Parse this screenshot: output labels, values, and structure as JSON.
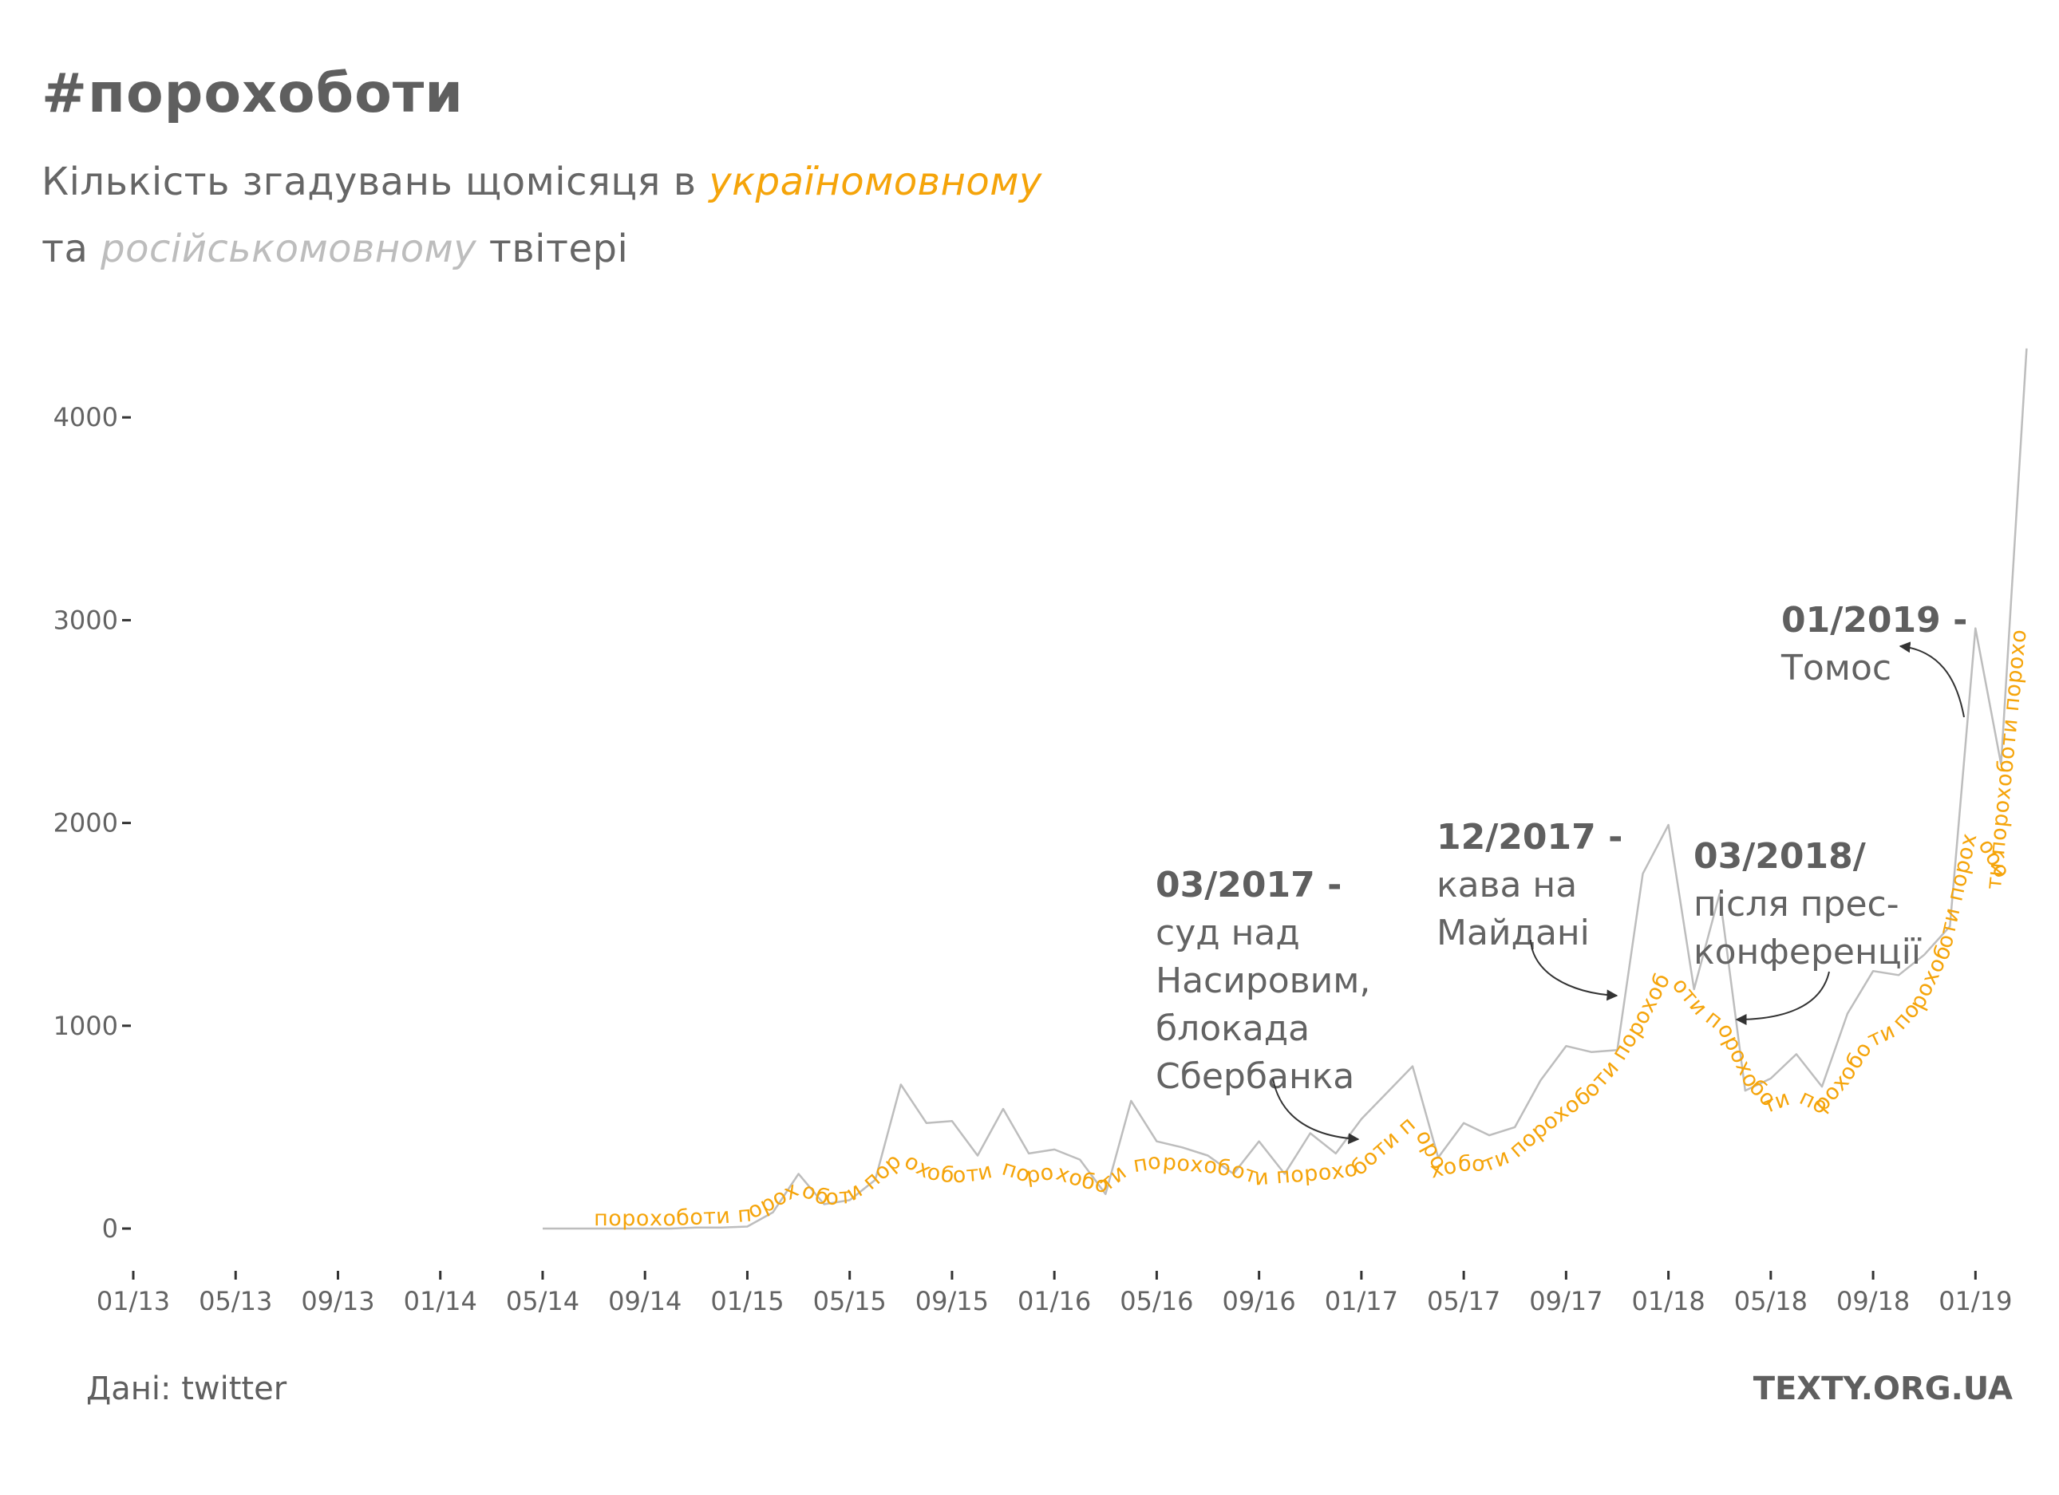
{
  "title": "#порохоботи",
  "subtitle": {
    "line1_prefix": "Кількість згадувань щомісяця в ",
    "line1_highlight": "україномовному",
    "line2_prefix": "та ",
    "line2_highlight": "російськомовному",
    "line2_suffix": " твітері"
  },
  "source": "Дані: twitter",
  "brand": "TEXTY.ORG.UA",
  "colors": {
    "ukrainian": "#f5a40a",
    "russian": "#bdbdbd",
    "text": "#636363",
    "annotation_heading": "#5f5f5f"
  },
  "chart_data": {
    "type": "line",
    "title": "",
    "xlabel": "",
    "ylabel": "",
    "x_ticks": [
      "01/13",
      "05/13",
      "09/13",
      "01/14",
      "05/14",
      "09/14",
      "01/15",
      "05/15",
      "09/15",
      "01/16",
      "05/16",
      "09/16",
      "01/17",
      "05/17",
      "09/17",
      "01/18",
      "05/18",
      "09/18",
      "01/19"
    ],
    "y_ticks": [
      0,
      1000,
      2000,
      3000,
      4000
    ],
    "ylim": [
      -250,
      4420
    ],
    "x_range": [
      "2013-01",
      "2019-03"
    ],
    "text_series_word": "порохоботи",
    "series": [
      {
        "name": "",
        "style": "line",
        "color": "#bdbdbd",
        "x": [
          "2014-05",
          "2014-06",
          "2014-07",
          "2014-08",
          "2014-09",
          "2014-10",
          "2014-11",
          "2014-12",
          "2015-01",
          "2015-02",
          "2015-03",
          "2015-04",
          "2015-05",
          "2015-06",
          "2015-07",
          "2015-08",
          "2015-09",
          "2015-10",
          "2015-11",
          "2015-12",
          "2016-01",
          "2016-02",
          "2016-03",
          "2016-04",
          "2016-05",
          "2016-06",
          "2016-07",
          "2016-08",
          "2016-09",
          "2016-10",
          "2016-11",
          "2016-12",
          "2017-01",
          "2017-02",
          "2017-03",
          "2017-04",
          "2017-05",
          "2017-06",
          "2017-07",
          "2017-08",
          "2017-09",
          "2017-10",
          "2017-11",
          "2017-12",
          "2018-01",
          "2018-02",
          "2018-03",
          "2018-04",
          "2018-05",
          "2018-06",
          "2018-07",
          "2018-08",
          "2018-09",
          "2018-10",
          "2018-11",
          "2018-12",
          "2019-01",
          "2019-02",
          "2019-03"
        ],
        "y": [
          0,
          0,
          0,
          0,
          0,
          0,
          5,
          5,
          10,
          80,
          270,
          120,
          140,
          240,
          710,
          520,
          530,
          360,
          590,
          370,
          390,
          340,
          170,
          630,
          430,
          400,
          360,
          270,
          430,
          270,
          470,
          370,
          540,
          670,
          800,
          350,
          520,
          460,
          500,
          730,
          900,
          870,
          880,
          1750,
          1990,
          1180,
          1650,
          680,
          740,
          860,
          700,
          1060,
          1270,
          1250,
          1350,
          1490,
          2960,
          2290,
          4340
        ]
      },
      {
        "name": "",
        "style": "text-path",
        "color": "#f5a40a",
        "x": [
          "2014-07",
          "2014-08",
          "2014-09",
          "2014-10",
          "2014-11",
          "2014-12",
          "2015-01",
          "2015-02",
          "2015-03",
          "2015-04",
          "2015-05",
          "2015-06",
          "2015-07",
          "2015-08",
          "2015-09",
          "2015-10",
          "2015-11",
          "2015-12",
          "2016-01",
          "2016-02",
          "2016-03",
          "2016-04",
          "2016-05",
          "2016-06",
          "2016-07",
          "2016-08",
          "2016-09",
          "2016-10",
          "2016-11",
          "2016-12",
          "2017-01",
          "2017-02",
          "2017-03",
          "2017-04",
          "2017-05",
          "2017-06",
          "2017-07",
          "2017-08",
          "2017-09",
          "2017-10",
          "2017-11",
          "2017-12",
          "2018-01",
          "2018-02",
          "2018-03",
          "2018-04",
          "2018-05",
          "2018-06",
          "2018-07",
          "2018-08",
          "2018-09",
          "2018-10",
          "2018-11",
          "2018-12",
          "2019-01",
          "2019-02",
          "2019-03"
        ],
        "y": [
          0,
          0,
          0,
          0,
          5,
          10,
          20,
          80,
          150,
          100,
          110,
          190,
          300,
          230,
          210,
          220,
          250,
          210,
          230,
          190,
          160,
          260,
          280,
          270,
          260,
          240,
          200,
          210,
          220,
          230,
          250,
          360,
          470,
          240,
          270,
          270,
          320,
          430,
          530,
          620,
          760,
          960,
          1200,
          1050,
          950,
          690,
          560,
          610,
          550,
          690,
          880,
          940,
          1080,
          1340,
          1900,
          1680,
          2960
        ]
      }
    ],
    "annotations": [
      {
        "heading": "03/2017 -",
        "lines": [
          "суд над",
          "Насировим,",
          "блокада",
          "Сбербанка"
        ],
        "date": "2017-03"
      },
      {
        "heading": "12/2017 -",
        "lines": [
          "кава на",
          "Майдані"
        ],
        "date": "2017-12"
      },
      {
        "heading": "03/2018/",
        "lines": [
          "після прес-",
          "конференції"
        ],
        "date": "2018-03"
      },
      {
        "heading": "01/2019 -",
        "lines": [
          "Томос"
        ],
        "date": "2019-01"
      }
    ]
  }
}
